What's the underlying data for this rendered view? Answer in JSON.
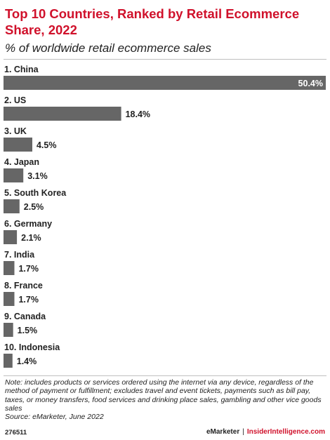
{
  "header": {
    "title": "Top 10 Countries, Ranked by Retail Ecommerce Share, 2022",
    "subtitle": "% of worldwide retail ecommerce sales"
  },
  "chart_data": {
    "type": "bar",
    "orientation": "horizontal",
    "title": "Top 10 Countries, Ranked by Retail Ecommerce Share, 2022",
    "subtitle": "% of worldwide retail ecommerce sales",
    "categories": [
      "1. China",
      "2. US",
      "3. UK",
      "4. Japan",
      "5. South Korea",
      "6. Germany",
      "7. India",
      "8. France",
      "9. Canada",
      "10. Indonesia"
    ],
    "values": [
      50.4,
      18.4,
      4.5,
      3.1,
      2.5,
      2.1,
      1.7,
      1.7,
      1.5,
      1.4
    ],
    "value_labels": [
      "50.4%",
      "18.4%",
      "4.5%",
      "3.1%",
      "2.5%",
      "2.1%",
      "1.7%",
      "1.7%",
      "1.5%",
      "1.4%"
    ],
    "xlim": [
      0,
      50.4
    ],
    "grid": false,
    "bar_color": "#666666"
  },
  "footer": {
    "note": "Note: includes products or services ordered using the internet via any device, regardless of the method of payment or fulfillment; excludes travel and event tickets, payments such as bill pay, taxes, or money transfers, food services and drinking place sales, gambling and other vice goods sales",
    "source": "Source: eMarketer, June 2022",
    "chart_id": "276511",
    "brand_left": "eMarketer",
    "brand_separator": "|",
    "brand_right": "InsiderIntelligence.com"
  },
  "colors": {
    "accent": "#d0112b",
    "bar": "#666666",
    "text": "#222222"
  }
}
